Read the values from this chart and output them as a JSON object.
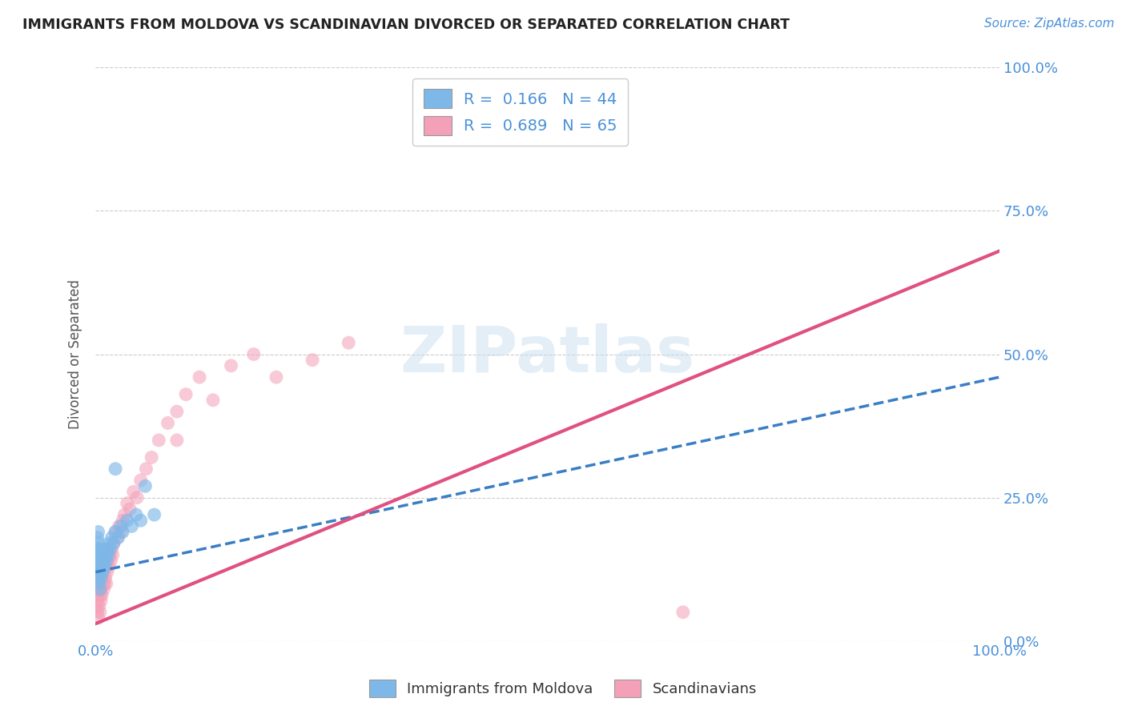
{
  "title": "IMMIGRANTS FROM MOLDOVA VS SCANDINAVIAN DIVORCED OR SEPARATED CORRELATION CHART",
  "source_text": "Source: ZipAtlas.com",
  "ylabel": "Divorced or Separated",
  "xlim": [
    0.0,
    1.0
  ],
  "ylim": [
    0.0,
    1.0
  ],
  "xtick_labels": [
    "0.0%",
    "100.0%"
  ],
  "ytick_labels": [
    "0.0%",
    "25.0%",
    "50.0%",
    "75.0%",
    "100.0%"
  ],
  "ytick_positions": [
    0.0,
    0.25,
    0.5,
    0.75,
    1.0
  ],
  "legend_r1_label": "R =  0.166   N = 44",
  "legend_r2_label": "R =  0.689   N = 65",
  "legend_bottom": [
    "Immigrants from Moldova",
    "Scandinavians"
  ],
  "color_blue": "#7EB8E8",
  "color_pink": "#F4A0B8",
  "color_blue_line": "#3A7EC6",
  "color_pink_line": "#E05080",
  "watermark_text": "ZIPatlas",
  "blue_scatter_x": [
    0.001,
    0.001,
    0.002,
    0.002,
    0.002,
    0.003,
    0.003,
    0.003,
    0.003,
    0.004,
    0.004,
    0.004,
    0.004,
    0.005,
    0.005,
    0.005,
    0.006,
    0.006,
    0.007,
    0.007,
    0.008,
    0.008,
    0.009,
    0.01,
    0.01,
    0.011,
    0.012,
    0.013,
    0.014,
    0.015,
    0.016,
    0.018,
    0.02,
    0.022,
    0.025,
    0.028,
    0.03,
    0.035,
    0.04,
    0.045,
    0.05,
    0.055,
    0.065,
    0.022
  ],
  "blue_scatter_y": [
    0.14,
    0.16,
    0.12,
    0.15,
    0.18,
    0.11,
    0.13,
    0.16,
    0.19,
    0.1,
    0.12,
    0.14,
    0.17,
    0.09,
    0.12,
    0.15,
    0.11,
    0.14,
    0.13,
    0.16,
    0.12,
    0.15,
    0.14,
    0.13,
    0.16,
    0.15,
    0.14,
    0.16,
    0.15,
    0.17,
    0.16,
    0.18,
    0.17,
    0.19,
    0.18,
    0.2,
    0.19,
    0.21,
    0.2,
    0.22,
    0.21,
    0.27,
    0.22,
    0.3
  ],
  "pink_scatter_x": [
    0.001,
    0.001,
    0.002,
    0.002,
    0.002,
    0.003,
    0.003,
    0.003,
    0.003,
    0.004,
    0.004,
    0.004,
    0.005,
    0.005,
    0.005,
    0.006,
    0.006,
    0.006,
    0.007,
    0.007,
    0.008,
    0.008,
    0.009,
    0.009,
    0.01,
    0.01,
    0.011,
    0.011,
    0.012,
    0.012,
    0.013,
    0.013,
    0.014,
    0.015,
    0.016,
    0.017,
    0.018,
    0.019,
    0.02,
    0.022,
    0.024,
    0.026,
    0.028,
    0.03,
    0.032,
    0.035,
    0.038,
    0.042,
    0.046,
    0.05,
    0.056,
    0.062,
    0.07,
    0.08,
    0.09,
    0.1,
    0.115,
    0.13,
    0.15,
    0.175,
    0.2,
    0.24,
    0.28,
    0.09,
    0.65
  ],
  "pink_scatter_y": [
    0.06,
    0.08,
    0.05,
    0.08,
    0.1,
    0.04,
    0.07,
    0.1,
    0.12,
    0.06,
    0.09,
    0.11,
    0.05,
    0.08,
    0.11,
    0.07,
    0.09,
    0.12,
    0.08,
    0.11,
    0.1,
    0.13,
    0.09,
    0.12,
    0.1,
    0.13,
    0.11,
    0.14,
    0.1,
    0.13,
    0.12,
    0.15,
    0.14,
    0.13,
    0.15,
    0.14,
    0.16,
    0.15,
    0.17,
    0.19,
    0.18,
    0.2,
    0.19,
    0.21,
    0.22,
    0.24,
    0.23,
    0.26,
    0.25,
    0.28,
    0.3,
    0.32,
    0.35,
    0.38,
    0.4,
    0.43,
    0.46,
    0.42,
    0.48,
    0.5,
    0.46,
    0.49,
    0.52,
    0.35,
    0.05
  ],
  "blue_line_x": [
    0.0,
    1.0
  ],
  "blue_line_y": [
    0.12,
    0.46
  ],
  "pink_line_x": [
    0.0,
    1.0
  ],
  "pink_line_y": [
    0.03,
    0.68
  ],
  "grid_color": "#cccccc",
  "background_color": "#ffffff",
  "title_color": "#222222",
  "axis_label_color": "#555555",
  "tick_label_color": "#4a90d9"
}
